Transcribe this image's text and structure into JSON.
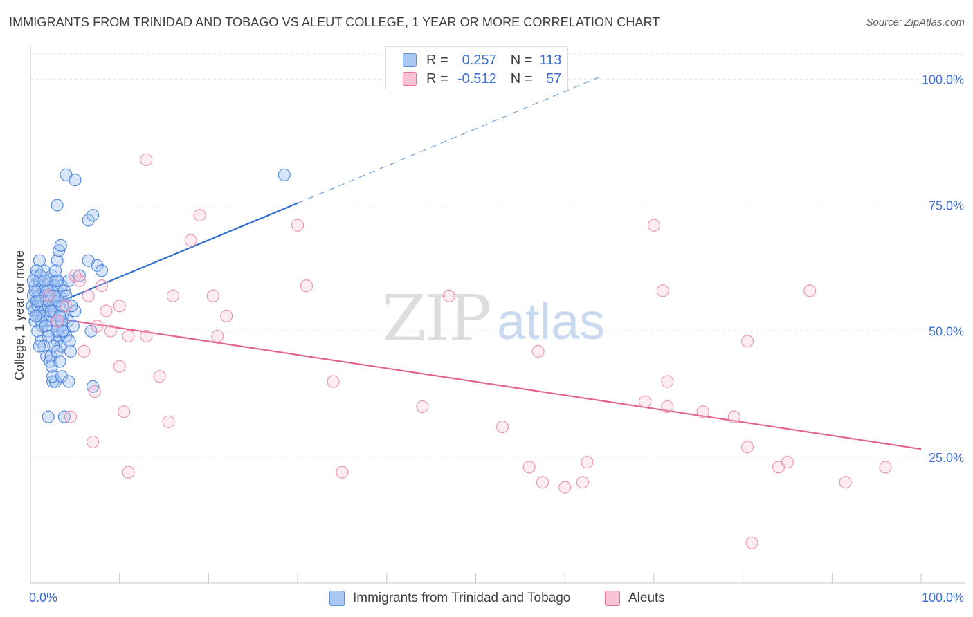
{
  "title": "IMMIGRANTS FROM TRINIDAD AND TOBAGO VS ALEUT COLLEGE, 1 YEAR OR MORE CORRELATION CHART",
  "source": "Source: ZipAtlas.com",
  "watermark": {
    "zip": "ZIP",
    "atlas": "atlas"
  },
  "legend": {
    "r_label": "R =",
    "n_label": "N =",
    "series": [
      {
        "name": "Immigrants from Trinidad and Tobago",
        "r": "0.257",
        "n": "113",
        "color": "#5b8fe0",
        "fill": "#aac8f3"
      },
      {
        "name": "Aleuts",
        "r": "-0.512",
        "n": "57",
        "color": "#e66f98",
        "fill": "#f8c4d4"
      }
    ]
  },
  "chart_data": {
    "type": "scatter",
    "title": "IMMIGRANTS FROM TRINIDAD AND TOBAGO VS ALEUT COLLEGE, 1 YEAR OR MORE CORRELATION CHART",
    "xlabel": "",
    "ylabel": "College, 1 year or more",
    "xlim": [
      0,
      100
    ],
    "ylim": [
      0,
      105
    ],
    "x_tick_labels": [
      "0.0%",
      "100.0%"
    ],
    "y_tick_values": [
      25,
      50,
      75,
      100
    ],
    "y_tick_labels": [
      "25.0%",
      "50.0%",
      "75.0%",
      "100.0%"
    ],
    "grid": true,
    "series": [
      {
        "name": "Immigrants from Trinidad and Tobago",
        "color": "#3a78d4",
        "trend": {
          "x0": 0,
          "y0": 53.4,
          "x1": 30,
          "y1": 75.4,
          "dash_to_x": 64,
          "dash_to_y": 100.5
        },
        "points": [
          [
            0.2,
            55
          ],
          [
            0.3,
            57
          ],
          [
            0.4,
            54
          ],
          [
            0.5,
            59
          ],
          [
            0.5,
            52
          ],
          [
            0.6,
            61
          ],
          [
            0.7,
            56
          ],
          [
            0.8,
            55
          ],
          [
            0.8,
            58
          ],
          [
            0.9,
            53
          ],
          [
            1.0,
            57
          ],
          [
            1.0,
            60
          ],
          [
            1.1,
            54
          ],
          [
            1.2,
            56
          ],
          [
            1.3,
            59
          ],
          [
            1.3,
            51
          ],
          [
            1.4,
            55
          ],
          [
            1.5,
            58
          ],
          [
            1.5,
            62
          ],
          [
            1.6,
            54
          ],
          [
            1.7,
            57
          ],
          [
            1.8,
            56
          ],
          [
            1.9,
            52
          ],
          [
            2.0,
            60
          ],
          [
            2.0,
            55
          ],
          [
            2.1,
            58
          ],
          [
            2.2,
            53
          ],
          [
            2.3,
            57
          ],
          [
            2.4,
            61
          ],
          [
            2.5,
            55
          ],
          [
            2.6,
            59
          ],
          [
            2.7,
            54
          ],
          [
            2.8,
            56
          ],
          [
            2.9,
            52
          ],
          [
            3.0,
            58
          ],
          [
            3.1,
            60
          ],
          [
            3.2,
            55
          ],
          [
            3.3,
            57
          ],
          [
            3.4,
            51
          ],
          [
            3.5,
            59
          ],
          [
            1.0,
            64
          ],
          [
            0.8,
            50
          ],
          [
            1.2,
            48
          ],
          [
            1.5,
            47
          ],
          [
            1.8,
            45
          ],
          [
            2.0,
            50
          ],
          [
            2.2,
            44
          ],
          [
            2.4,
            43
          ],
          [
            2.5,
            40
          ],
          [
            2.8,
            40
          ],
          [
            3.0,
            48
          ],
          [
            3.2,
            49
          ],
          [
            3.4,
            47
          ],
          [
            3.6,
            53
          ],
          [
            3.8,
            50
          ],
          [
            4.0,
            49
          ],
          [
            4.2,
            52
          ],
          [
            4.5,
            46
          ],
          [
            4.8,
            51
          ],
          [
            5.0,
            54
          ],
          [
            3.0,
            50
          ],
          [
            3.5,
            52
          ],
          [
            3.8,
            58
          ],
          [
            4.0,
            57
          ],
          [
            4.3,
            60
          ],
          [
            4.6,
            55
          ],
          [
            0.5,
            58
          ],
          [
            0.7,
            62
          ],
          [
            0.9,
            56
          ],
          [
            1.1,
            61
          ],
          [
            1.4,
            53
          ],
          [
            1.6,
            60
          ],
          [
            1.9,
            58
          ],
          [
            2.1,
            56
          ],
          [
            2.3,
            54
          ],
          [
            2.6,
            57
          ],
          [
            2.9,
            60
          ],
          [
            3.1,
            56
          ],
          [
            3.3,
            53
          ],
          [
            3.6,
            55
          ],
          [
            3.0,
            64
          ],
          [
            3.2,
            66
          ],
          [
            3.4,
            67
          ],
          [
            2.8,
            62
          ],
          [
            5.5,
            61
          ],
          [
            6.5,
            64
          ],
          [
            6.5,
            72
          ],
          [
            7.0,
            73
          ],
          [
            7.5,
            63
          ],
          [
            8.0,
            62
          ],
          [
            3.0,
            75
          ],
          [
            4.0,
            81
          ],
          [
            5.0,
            80
          ],
          [
            6.8,
            50
          ],
          [
            2.0,
            33
          ],
          [
            3.8,
            33
          ],
          [
            2.5,
            41
          ],
          [
            3.5,
            41
          ],
          [
            4.3,
            40
          ],
          [
            7.0,
            39
          ],
          [
            28.5,
            81
          ],
          [
            1.0,
            47
          ],
          [
            1.2,
            52
          ],
          [
            1.7,
            51
          ],
          [
            2.0,
            49
          ],
          [
            2.3,
            45
          ],
          [
            2.6,
            47
          ],
          [
            3.0,
            46
          ],
          [
            3.3,
            44
          ],
          [
            3.6,
            50
          ],
          [
            0.3,
            60
          ],
          [
            0.6,
            53
          ],
          [
            4.4,
            48
          ]
        ]
      },
      {
        "name": "Aleuts",
        "color": "#e66f98",
        "trend": {
          "x0": 0,
          "y0": 53.3,
          "x1": 100,
          "y1": 26.6
        },
        "points": [
          [
            2.0,
            57
          ],
          [
            3.0,
            52
          ],
          [
            4.0,
            55
          ],
          [
            5.0,
            61
          ],
          [
            6.0,
            46
          ],
          [
            6.5,
            57
          ],
          [
            7.0,
            28
          ],
          [
            7.5,
            51
          ],
          [
            8.0,
            59
          ],
          [
            9.0,
            50
          ],
          [
            10.0,
            55
          ],
          [
            10.5,
            34
          ],
          [
            11.0,
            22
          ],
          [
            11.0,
            49
          ],
          [
            13.0,
            49
          ],
          [
            13.0,
            84
          ],
          [
            14.5,
            41
          ],
          [
            15.5,
            32
          ],
          [
            18.0,
            68
          ],
          [
            19.0,
            73
          ],
          [
            20.5,
            57
          ],
          [
            21.0,
            49
          ],
          [
            22.0,
            53
          ],
          [
            30.0,
            71
          ],
          [
            31.0,
            59
          ],
          [
            34.0,
            40
          ],
          [
            35.0,
            22
          ],
          [
            44.0,
            35
          ],
          [
            47.0,
            57
          ],
          [
            53.0,
            31
          ],
          [
            56.0,
            23
          ],
          [
            57.0,
            46
          ],
          [
            57.5,
            20
          ],
          [
            60.0,
            19
          ],
          [
            62.0,
            20
          ],
          [
            62.5,
            24
          ],
          [
            69.0,
            36
          ],
          [
            70.0,
            71
          ],
          [
            71.0,
            58
          ],
          [
            71.5,
            40
          ],
          [
            71.5,
            35
          ],
          [
            75.5,
            34
          ],
          [
            79.0,
            33
          ],
          [
            80.5,
            48
          ],
          [
            80.5,
            27
          ],
          [
            84.0,
            23
          ],
          [
            85.0,
            24
          ],
          [
            87.5,
            58
          ],
          [
            91.5,
            20
          ],
          [
            96.0,
            23
          ],
          [
            81.0,
            8
          ],
          [
            4.5,
            33
          ],
          [
            5.5,
            60
          ],
          [
            8.5,
            54
          ],
          [
            16.0,
            57
          ],
          [
            10.0,
            43
          ],
          [
            7.2,
            38
          ]
        ]
      }
    ]
  }
}
